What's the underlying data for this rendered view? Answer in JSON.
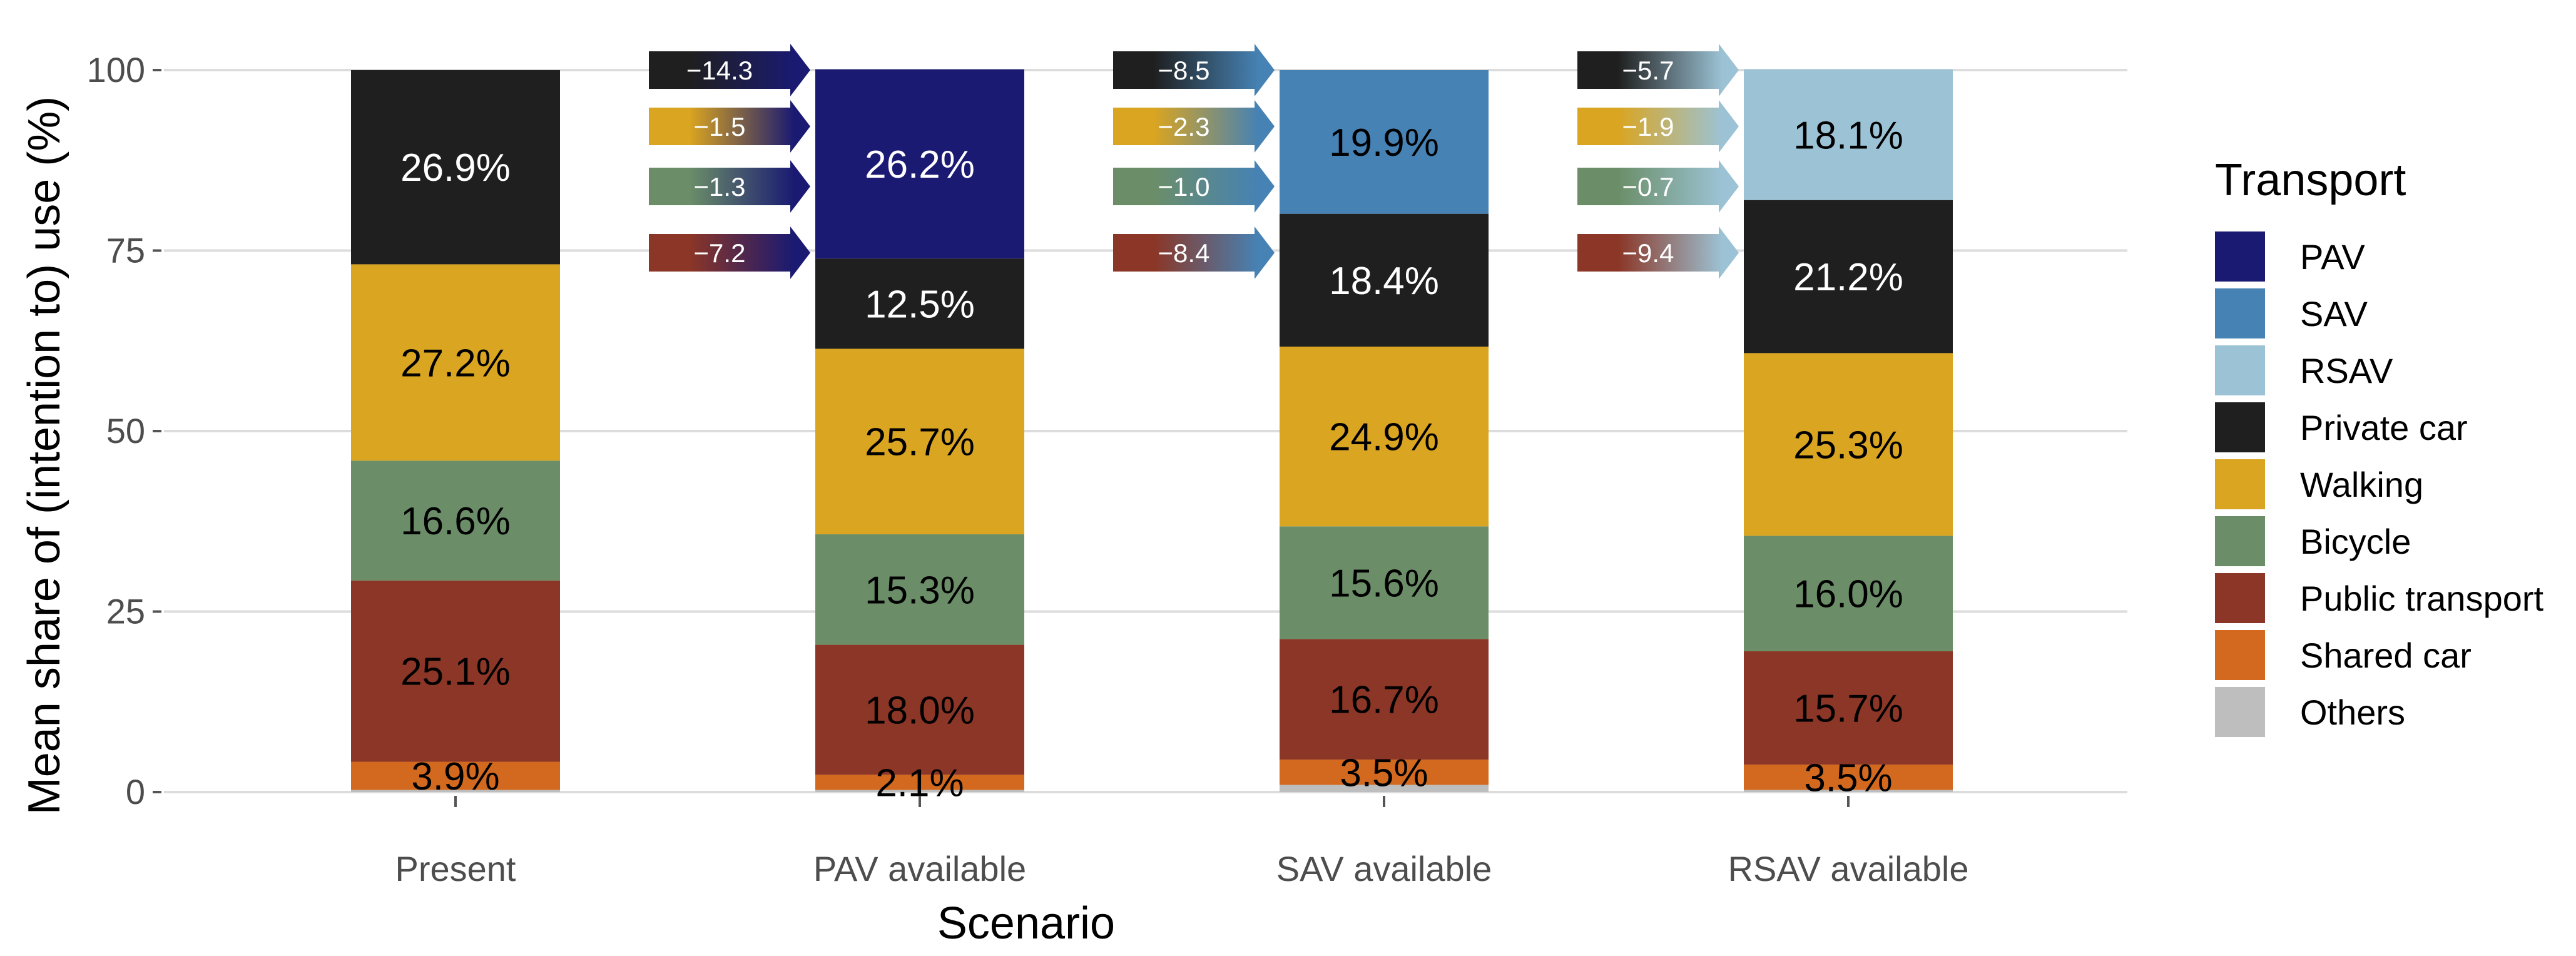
{
  "chart_data": {
    "type": "bar",
    "stacked": true,
    "title": "",
    "xlabel": "Scenario",
    "ylabel": "Mean share of (intention to) use (%)",
    "ylim": [
      0,
      100
    ],
    "yticks": [
      "0",
      "25",
      "50",
      "75",
      "100"
    ],
    "grid": true,
    "categories": [
      "Present",
      "PAV available",
      "SAV available",
      "RSAV available"
    ],
    "legend": {
      "title": "Transport",
      "position": "right",
      "entries": [
        "PAV",
        "SAV",
        "RSAV",
        "Private car",
        "Walking",
        "Bicycle",
        "Public transport",
        "Shared car",
        "Others"
      ]
    },
    "stack_order": [
      "Others",
      "Shared car",
      "Public transport",
      "Bicycle",
      "Walking",
      "Private car",
      "RSAV",
      "SAV",
      "PAV"
    ],
    "series": [
      {
        "name": "PAV",
        "color": "#1a1a72",
        "text_color": "#ffffff",
        "values": [
          0,
          26.2,
          0,
          0
        ],
        "labels": [
          "",
          "26.2%",
          "",
          ""
        ]
      },
      {
        "name": "SAV",
        "color": "#4682b4",
        "text_color": "#000000",
        "values": [
          0,
          0,
          19.9,
          0
        ],
        "labels": [
          "",
          "",
          "19.9%",
          ""
        ]
      },
      {
        "name": "RSAV",
        "color": "#9cc3d5",
        "text_color": "#000000",
        "values": [
          0,
          0,
          0,
          18.1
        ],
        "labels": [
          "",
          "",
          "",
          "18.1%"
        ]
      },
      {
        "name": "Private car",
        "color": "#1f1f1f",
        "text_color": "#ffffff",
        "values": [
          26.9,
          12.5,
          18.4,
          21.2
        ],
        "labels": [
          "26.9%",
          "12.5%",
          "18.4%",
          "21.2%"
        ]
      },
      {
        "name": "Walking",
        "color": "#daa520",
        "text_color": "#000000",
        "values": [
          27.2,
          25.7,
          24.9,
          25.3
        ],
        "labels": [
          "27.2%",
          "25.7%",
          "24.9%",
          "25.3%"
        ]
      },
      {
        "name": "Bicycle",
        "color": "#6b8e68",
        "text_color": "#000000",
        "values": [
          16.6,
          15.3,
          15.6,
          16.0
        ],
        "labels": [
          "16.6%",
          "15.3%",
          "15.6%",
          "16.0%"
        ]
      },
      {
        "name": "Public transport",
        "color": "#8b3626",
        "text_color": "#000000",
        "values": [
          25.1,
          18.0,
          16.7,
          15.7
        ],
        "labels": [
          "25.1%",
          "18.0%",
          "16.7%",
          "15.7%"
        ]
      },
      {
        "name": "Shared car",
        "color": "#d2691e",
        "text_color": "#000000",
        "values": [
          3.9,
          2.1,
          3.5,
          3.5
        ],
        "labels": [
          "3.9%",
          "2.1%",
          "3.5%",
          "3.5%"
        ]
      },
      {
        "name": "Others",
        "color": "#bebebe",
        "text_color": "#000000",
        "values": [
          0.3,
          0.3,
          1.0,
          0.3
        ],
        "labels": [
          "",
          "",
          "",
          ""
        ]
      }
    ],
    "change_arrows": [
      {
        "scenario": "PAV available",
        "target_color": "#1a1a72",
        "items": [
          {
            "from": "Private car",
            "from_color": "#1f1f1f",
            "value": "−14.3"
          },
          {
            "from": "Walking",
            "from_color": "#daa520",
            "value": "−1.5"
          },
          {
            "from": "Bicycle",
            "from_color": "#6b8e68",
            "value": "−1.3"
          },
          {
            "from": "Public transport",
            "from_color": "#8b3626",
            "value": "−7.2"
          }
        ]
      },
      {
        "scenario": "SAV available",
        "target_color": "#4682b4",
        "items": [
          {
            "from": "Private car",
            "from_color": "#1f1f1f",
            "value": "−8.5"
          },
          {
            "from": "Walking",
            "from_color": "#daa520",
            "value": "−2.3"
          },
          {
            "from": "Bicycle",
            "from_color": "#6b8e68",
            "value": "−1.0"
          },
          {
            "from": "Public transport",
            "from_color": "#8b3626",
            "value": "−8.4"
          }
        ]
      },
      {
        "scenario": "RSAV available",
        "target_color": "#9cc3d5",
        "items": [
          {
            "from": "Private car",
            "from_color": "#1f1f1f",
            "value": "−5.7"
          },
          {
            "from": "Walking",
            "from_color": "#daa520",
            "value": "−1.9"
          },
          {
            "from": "Bicycle",
            "from_color": "#6b8e68",
            "value": "−0.7"
          },
          {
            "from": "Public transport",
            "from_color": "#8b3626",
            "value": "−9.4"
          }
        ]
      }
    ]
  }
}
